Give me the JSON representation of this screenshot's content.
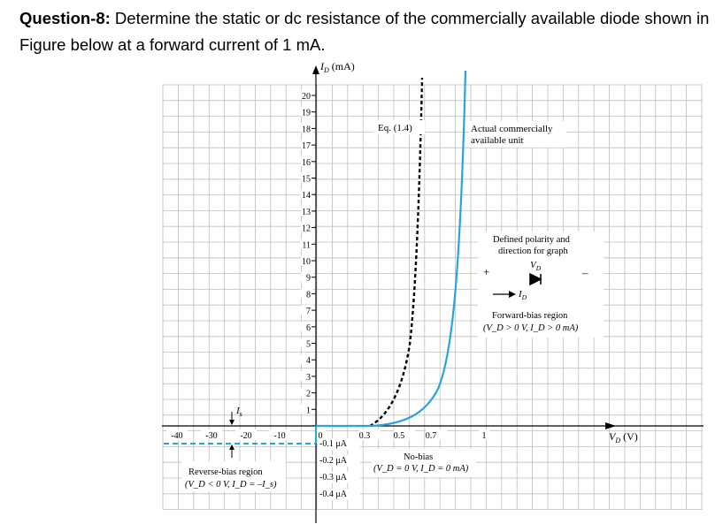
{
  "question": {
    "label": "Question-8:",
    "text": "Determine the static or dc resistance of the commercially available diode shown in Figure below at a forward current of 1 mA."
  },
  "figure": {
    "y_axis_label": "I",
    "y_axis_sub": "D",
    "y_axis_unit": " (mA)",
    "x_axis_label": "V",
    "x_axis_sub": "D",
    "x_axis_unit": " (V)",
    "y_ticks": [
      "1",
      "2",
      "3",
      "4",
      "5",
      "6",
      "7",
      "8",
      "9",
      "10",
      "11",
      "12",
      "13",
      "14",
      "15",
      "16",
      "17",
      "18",
      "19",
      "20"
    ],
    "x_ticks_pos": [
      "0",
      "0.3",
      "0.5",
      "0.7",
      "1"
    ],
    "x_ticks_neg": [
      "-40",
      "-30",
      "-20",
      "-10"
    ],
    "neg_current_labels": [
      "-0.1 μA",
      "-0.2 μA",
      "-0.3 μA",
      "-0.4 μA"
    ],
    "eq_label": "Eq. (1.4)",
    "actual_label_1": "Actual commercially",
    "actual_label_2": "available unit",
    "polarity_1": "Defined polarity and",
    "polarity_2": "direction for graph",
    "plus": "+",
    "minus": "–",
    "vd_symbol": "V",
    "vd_sub": "D",
    "id_symbol": "I",
    "id_sub": "D",
    "forward_1": "Forward-bias region",
    "forward_2": "(V_D > 0 V, I_D > 0 mA)",
    "reverse_1": "Reverse-bias region",
    "reverse_2": "(V_D < 0 V, I_D = –I_s)",
    "nobias_1": "No-bias",
    "nobias_2": "(V_D = 0 V, I_D = 0 mA)",
    "is_symbol": "I",
    "is_sub": "s",
    "colors": {
      "curve": "#29a3dc",
      "grid": "#bdbdbd",
      "axis": "#000000"
    }
  }
}
